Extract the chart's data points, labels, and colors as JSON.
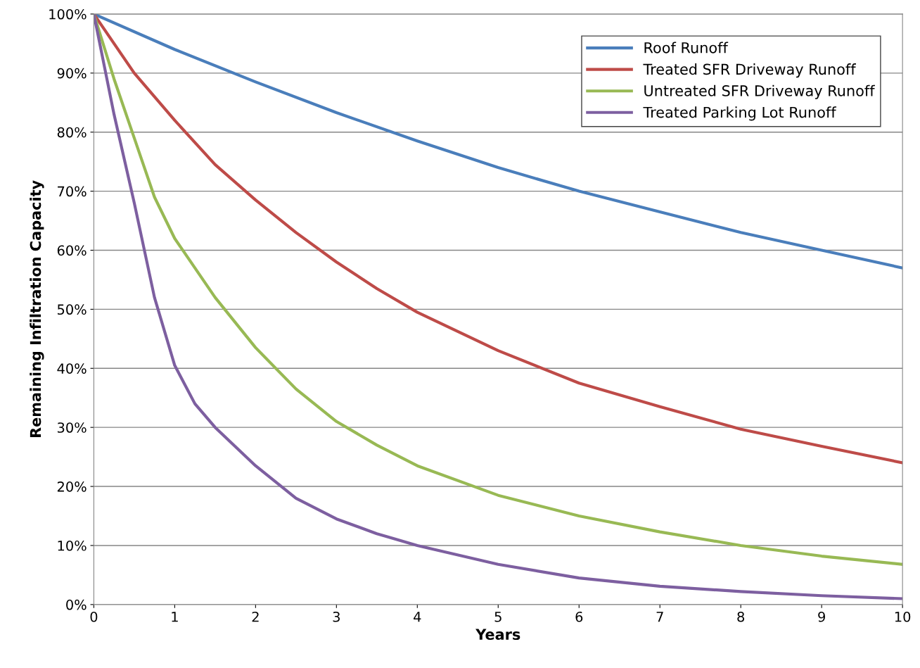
{
  "chart_data": {
    "type": "line",
    "xlabel": "Years",
    "ylabel": "Remaining Infiltration Capacity",
    "xlim": [
      0,
      10
    ],
    "xticks": [
      0,
      1,
      2,
      3,
      4,
      5,
      6,
      7,
      8,
      9,
      10
    ],
    "ylim": [
      0,
      100
    ],
    "yticks": [
      {
        "value": 0,
        "label": "0%"
      },
      {
        "value": 10,
        "label": "10%"
      },
      {
        "value": 20,
        "label": "20%"
      },
      {
        "value": 30,
        "label": "30%"
      },
      {
        "value": 40,
        "label": "40%"
      },
      {
        "value": 50,
        "label": "50%"
      },
      {
        "value": 60,
        "label": "60%"
      },
      {
        "value": 70,
        "label": "70%"
      },
      {
        "value": 80,
        "label": "80%"
      },
      {
        "value": 90,
        "label": "90%"
      },
      {
        "value": 100,
        "label": "100%"
      }
    ],
    "grid": "y",
    "legend": "top right",
    "marker": "none",
    "line_style": "solid",
    "series": [
      {
        "name": "Roof Runoff",
        "color": "#4a7ebb",
        "x": [
          0,
          1,
          2,
          3,
          4,
          5,
          6,
          7,
          8,
          9,
          10
        ],
        "values": [
          100,
          94,
          88.5,
          83.3,
          78.5,
          74,
          70,
          66.5,
          63,
          60,
          57
        ]
      },
      {
        "name": "Treated SFR Driveway Runoff",
        "color": "#be4b48",
        "x": [
          0,
          0.5,
          1,
          1.5,
          2,
          2.5,
          3,
          3.5,
          4,
          5,
          6,
          7,
          8,
          9,
          10
        ],
        "values": [
          100,
          90,
          82,
          74.5,
          68.5,
          63,
          58,
          53.5,
          49.5,
          43,
          37.5,
          33.5,
          29.7,
          26.8,
          24
        ]
      },
      {
        "name": "Untreated SFR Driveway Runoff",
        "color": "#98b954",
        "x": [
          0,
          0.25,
          0.5,
          0.75,
          1,
          1.5,
          2,
          2.5,
          3,
          3.5,
          4,
          5,
          6,
          7,
          8,
          9,
          10
        ],
        "values": [
          100,
          89,
          79,
          69,
          62,
          52,
          43.5,
          36.5,
          31,
          27,
          23.5,
          18.5,
          15,
          12.3,
          10,
          8.2,
          6.8
        ]
      },
      {
        "name": "Treated Parking Lot Runoff",
        "color": "#7d5fa0",
        "x": [
          0,
          0.25,
          0.5,
          0.75,
          1,
          1.25,
          1.5,
          2,
          2.5,
          3,
          3.5,
          4,
          5,
          6,
          7,
          8,
          9,
          10
        ],
        "values": [
          100,
          83,
          68,
          52,
          40.5,
          34,
          30,
          23.5,
          18,
          14.5,
          12,
          10,
          6.8,
          4.5,
          3.1,
          2.2,
          1.5,
          1
        ]
      }
    ]
  }
}
